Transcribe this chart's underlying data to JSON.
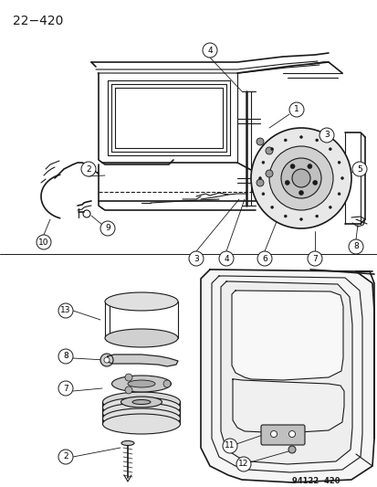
{
  "title": "22−420",
  "part_number": "94122  420",
  "background_color": "#ffffff",
  "line_color": "#1a1a1a",
  "fig_width": 4.14,
  "fig_height": 5.33,
  "dpi": 100,
  "title_fontsize": 10,
  "callout_fontsize": 6.5,
  "part_number_fontsize": 6
}
